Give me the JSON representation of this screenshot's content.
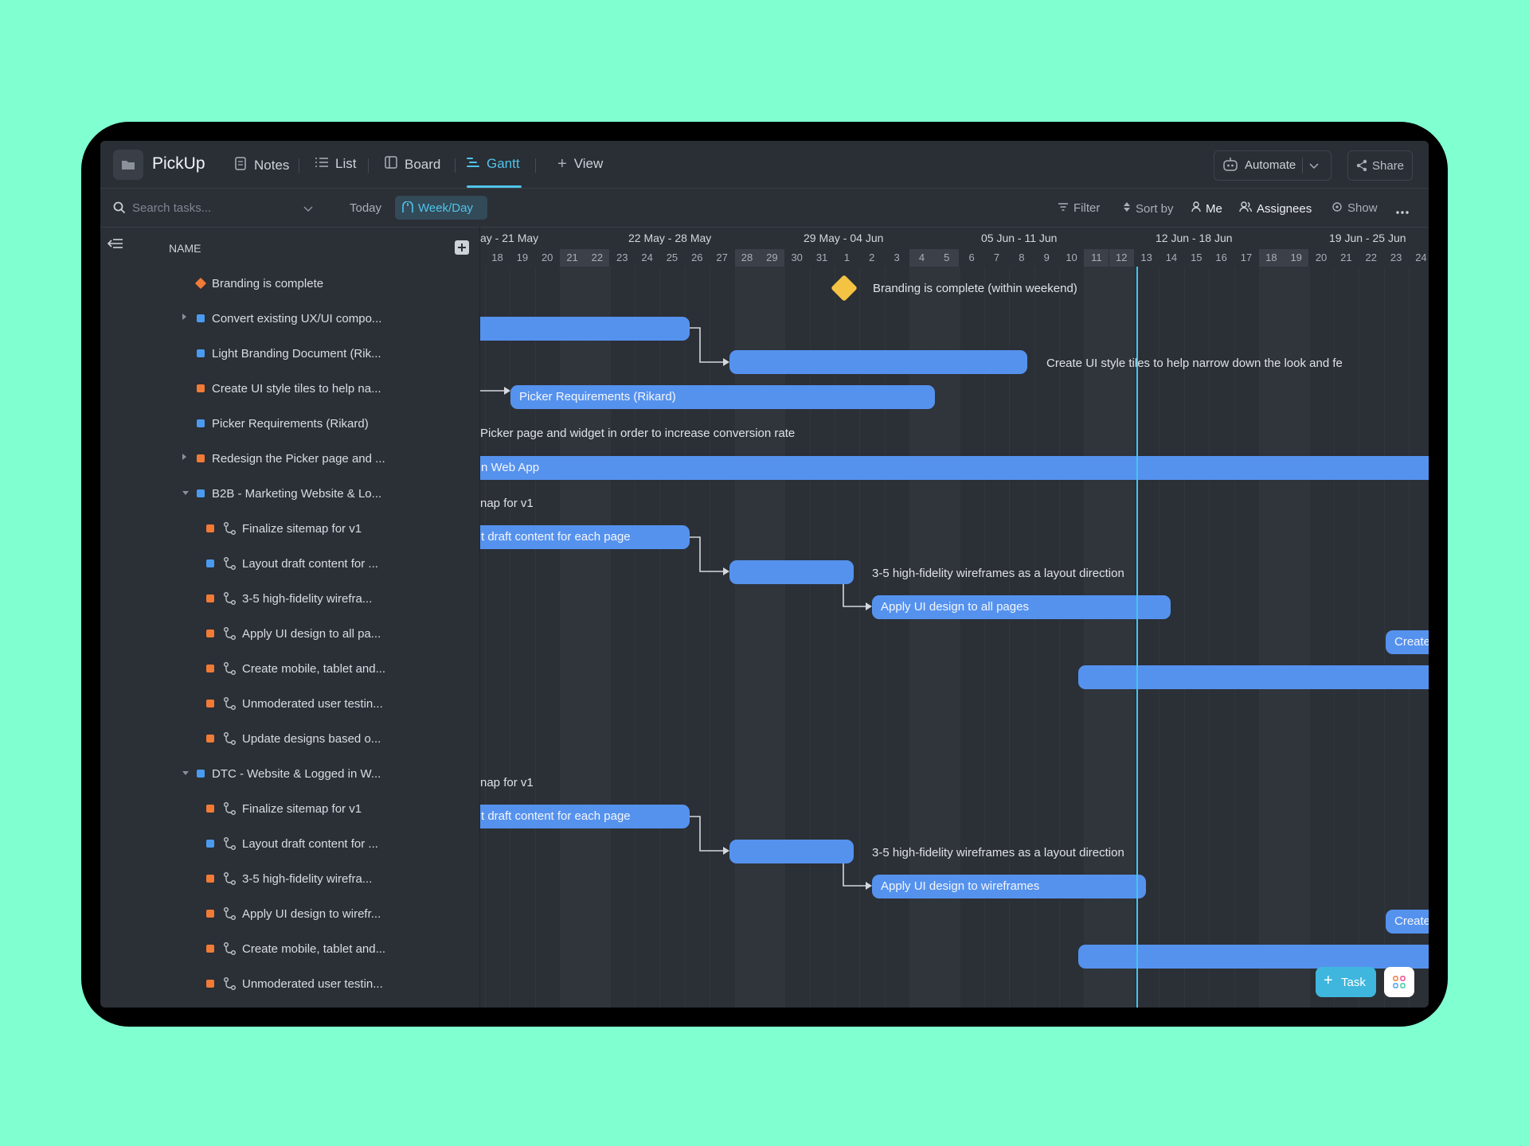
{
  "app": {
    "space_name": "PickUp",
    "colors": {
      "background": "#80ffd1",
      "accent": "#4fc4ea",
      "bar": "#5592ee",
      "orange_status": "#f07b36",
      "blue_status": "#4a9bf0",
      "milestone": "#f5c343"
    }
  },
  "tabs": [
    {
      "label": "Notes",
      "icon": "notes-icon"
    },
    {
      "label": "List",
      "icon": "list-icon"
    },
    {
      "label": "Board",
      "icon": "board-icon"
    },
    {
      "label": "Gantt",
      "icon": "gantt-icon",
      "active": true
    },
    {
      "label": "View",
      "icon": "plus-icon"
    }
  ],
  "header_actions": {
    "automate": "Automate",
    "share": "Share"
  },
  "toolbar": {
    "search_placeholder": "Search tasks...",
    "today": "Today",
    "week_day": "Week/Day",
    "filter": "Filter",
    "sort_by": "Sort by",
    "me": "Me",
    "assignees": "Assignees",
    "show": "Show"
  },
  "list": {
    "name_header": "NAME",
    "rows": [
      {
        "label": "Branding is complete",
        "color": "orange",
        "kind": "milestone"
      },
      {
        "label": "Convert existing UX/UI compo...",
        "color": "blue",
        "caret": "right"
      },
      {
        "label": "Light Branding Document (Rik...",
        "color": "blue"
      },
      {
        "label": "Create UI style tiles to help na...",
        "color": "orange"
      },
      {
        "label": "Picker Requirements (Rikard)",
        "color": "blue"
      },
      {
        "label": "Redesign the Picker page and ...",
        "color": "orange",
        "caret": "right"
      },
      {
        "label": "B2B - Marketing Website & Lo...",
        "color": "blue",
        "caret": "down"
      },
      {
        "label": "Finalize sitemap for v1",
        "color": "orange",
        "subtask": true
      },
      {
        "label": "Layout draft content for ...",
        "color": "blue",
        "subtask": true
      },
      {
        "label": "3-5 high-fidelity wirefra...",
        "color": "orange",
        "subtask": true
      },
      {
        "label": "Apply UI design to all pa...",
        "color": "orange",
        "subtask": true
      },
      {
        "label": "Create mobile, tablet and...",
        "color": "orange",
        "subtask": true
      },
      {
        "label": "Unmoderated user testin...",
        "color": "orange",
        "subtask": true
      },
      {
        "label": "Update designs based o...",
        "color": "orange",
        "subtask": true
      },
      {
        "label": "DTC - Website & Logged in W...",
        "color": "blue",
        "caret": "down"
      },
      {
        "label": "Finalize sitemap for v1",
        "color": "orange",
        "subtask": true
      },
      {
        "label": "Layout draft content for ...",
        "color": "blue",
        "subtask": true
      },
      {
        "label": "3-5 high-fidelity wirefra...",
        "color": "orange",
        "subtask": true
      },
      {
        "label": "Apply UI design to wirefr...",
        "color": "orange",
        "subtask": true
      },
      {
        "label": "Create mobile, tablet and...",
        "color": "orange",
        "subtask": true
      },
      {
        "label": "Unmoderated user testin...",
        "color": "orange",
        "subtask": true
      }
    ]
  },
  "timeline": {
    "weeks": [
      "ay - 21 May",
      "22 May - 28 May",
      "29 May - 04 Jun",
      "05 Jun - 11 Jun",
      "12 Jun - 18 Jun",
      "19 Jun - 25 Jun"
    ],
    "days": [
      "18",
      "19",
      "20",
      "21",
      "22",
      "23",
      "24",
      "25",
      "26",
      "27",
      "28",
      "29",
      "30",
      "31",
      "1",
      "2",
      "3",
      "4",
      "5",
      "6",
      "7",
      "8",
      "9",
      "10",
      "11",
      "12",
      "13",
      "14",
      "15",
      "16",
      "17",
      "18",
      "19",
      "20",
      "21",
      "22",
      "23",
      "24"
    ],
    "weekend_days": [
      "21",
      "22",
      "28",
      "29",
      "4",
      "5",
      "11",
      "12",
      "18",
      "19"
    ],
    "today_marker_day": "13"
  },
  "gantt": {
    "milestone_label": "Branding is complete (within weekend)",
    "labels": {
      "style_tiles": "Create UI style tiles to help narrow down the look and fe",
      "picker_bar": "Picker Requirements (Rikard)",
      "redesign": "Picker page and widget in order to increase conversion rate",
      "b2b_bar": "n Web App",
      "sitemap_1": "nap for v1",
      "layout_1": "t draft content for each page",
      "hifi_1": "3-5 high-fidelity wireframes as a layout direction",
      "apply_1": "Apply UI design to all pages",
      "mobile_1": "Create mobile, tablet a",
      "sitemap_2": "nap for v1",
      "layout_2": "t draft content for each page",
      "hifi_2": "3-5 high-fidelity wireframes as a layout direction",
      "apply_2": "Apply UI design to wireframes",
      "mobile_2": "Create mobile, tablet a"
    }
  },
  "fab": {
    "task": "Task"
  }
}
